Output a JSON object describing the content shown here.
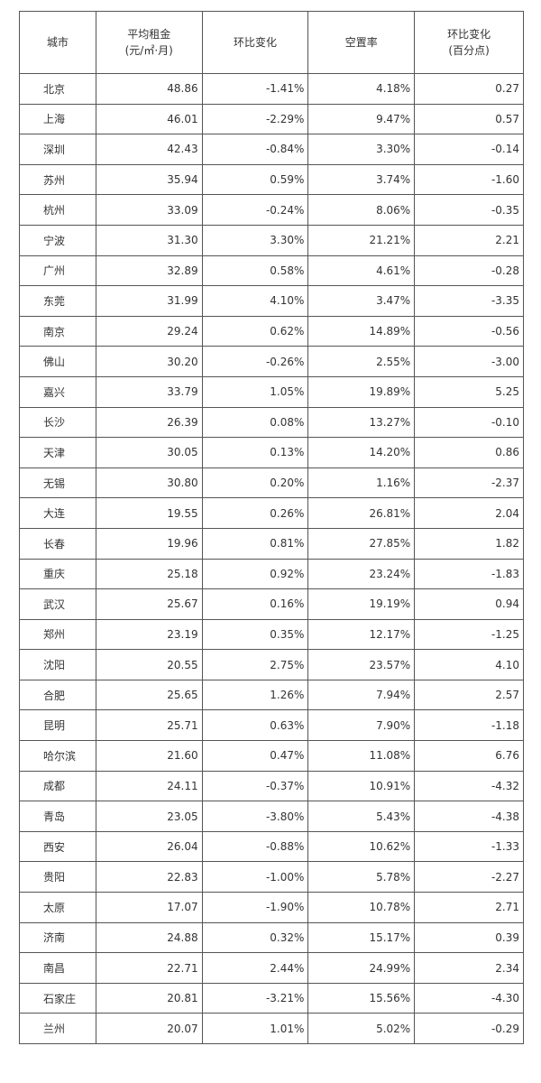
{
  "headers": [
    {
      "line1": "城市",
      "line2": ""
    },
    {
      "line1": "平均租金",
      "line2": "(元/㎡·月)"
    },
    {
      "line1": "环比变化",
      "line2": ""
    },
    {
      "line1": "空置率",
      "line2": ""
    },
    {
      "line1": "环比变化",
      "line2": "(百分点)"
    }
  ],
  "rows": [
    [
      "北京",
      "48.86",
      "-1.41%",
      "4.18%",
      "0.27"
    ],
    [
      "上海",
      "46.01",
      "-2.29%",
      "9.47%",
      "0.57"
    ],
    [
      "深圳",
      "42.43",
      "-0.84%",
      "3.30%",
      "-0.14"
    ],
    [
      "苏州",
      "35.94",
      "0.59%",
      "3.74%",
      "-1.60"
    ],
    [
      "杭州",
      "33.09",
      "-0.24%",
      "8.06%",
      "-0.35"
    ],
    [
      "宁波",
      "31.30",
      "3.30%",
      "21.21%",
      "2.21"
    ],
    [
      "广州",
      "32.89",
      "0.58%",
      "4.61%",
      "-0.28"
    ],
    [
      "东莞",
      "31.99",
      "4.10%",
      "3.47%",
      "-3.35"
    ],
    [
      "南京",
      "29.24",
      "0.62%",
      "14.89%",
      "-0.56"
    ],
    [
      "佛山",
      "30.20",
      "-0.26%",
      "2.55%",
      "-3.00"
    ],
    [
      "嘉兴",
      "33.79",
      "1.05%",
      "19.89%",
      "5.25"
    ],
    [
      "长沙",
      "26.39",
      "0.08%",
      "13.27%",
      "-0.10"
    ],
    [
      "天津",
      "30.05",
      "0.13%",
      "14.20%",
      "0.86"
    ],
    [
      "无锡",
      "30.80",
      "0.20%",
      "1.16%",
      "-2.37"
    ],
    [
      "大连",
      "19.55",
      "0.26%",
      "26.81%",
      "2.04"
    ],
    [
      "长春",
      "19.96",
      "0.81%",
      "27.85%",
      "1.82"
    ],
    [
      "重庆",
      "25.18",
      "0.92%",
      "23.24%",
      "-1.83"
    ],
    [
      "武汉",
      "25.67",
      "0.16%",
      "19.19%",
      "0.94"
    ],
    [
      "郑州",
      "23.19",
      "0.35%",
      "12.17%",
      "-1.25"
    ],
    [
      "沈阳",
      "20.55",
      "2.75%",
      "23.57%",
      "4.10"
    ],
    [
      "合肥",
      "25.65",
      "1.26%",
      "7.94%",
      "2.57"
    ],
    [
      "昆明",
      "25.71",
      "0.63%",
      "7.90%",
      "-1.18"
    ],
    [
      "哈尔滨",
      "21.60",
      "0.47%",
      "11.08%",
      "6.76"
    ],
    [
      "成都",
      "24.11",
      "-0.37%",
      "10.91%",
      "-4.32"
    ],
    [
      "青岛",
      "23.05",
      "-3.80%",
      "5.43%",
      "-4.38"
    ],
    [
      "西安",
      "26.04",
      "-0.88%",
      "10.62%",
      "-1.33"
    ],
    [
      "贵阳",
      "22.83",
      "-1.00%",
      "5.78%",
      "-2.27"
    ],
    [
      "太原",
      "17.07",
      "-1.90%",
      "10.78%",
      "2.71"
    ],
    [
      "济南",
      "24.88",
      "0.32%",
      "15.17%",
      "0.39"
    ],
    [
      "南昌",
      "22.71",
      "2.44%",
      "24.99%",
      "2.34"
    ],
    [
      "石家庄",
      "20.81",
      "-3.21%",
      "15.56%",
      "-4.30"
    ],
    [
      "兰州",
      "20.07",
      "1.01%",
      "5.02%",
      "-0.29"
    ]
  ]
}
